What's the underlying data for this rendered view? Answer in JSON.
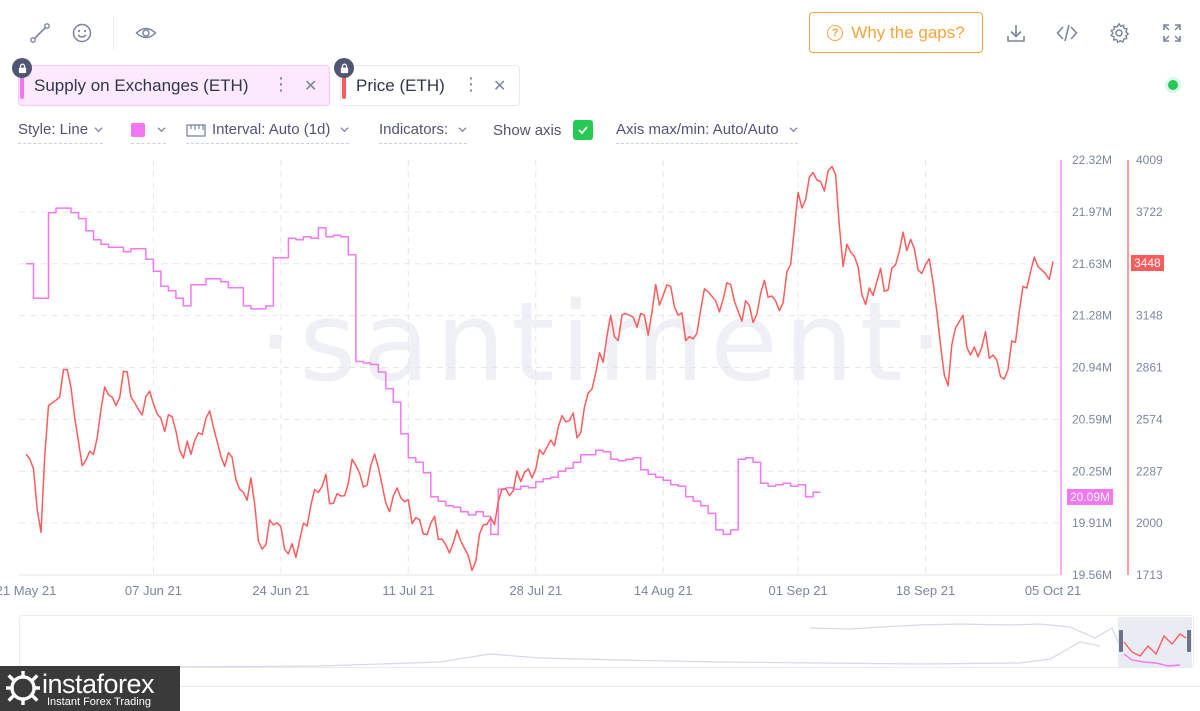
{
  "toolbar": {
    "left_icons": [
      "line-draw-icon",
      "emoji-icon",
      "eye-icon"
    ],
    "gaps_label": "Why the gaps?",
    "right_icons": [
      "download-icon",
      "embed-code-icon",
      "settings-icon",
      "fullscreen-icon"
    ]
  },
  "metrics": [
    {
      "label": "Supply on Exchanges (ETH)",
      "color": "#f477f2"
    },
    {
      "label": "Price (ETH)",
      "color": "#ff5b5b"
    }
  ],
  "settings": {
    "style": "Style: Line",
    "interval": "Interval: Auto (1d)",
    "indicators": "Indicators:",
    "show_axis": "Show axis",
    "axis_range": "Axis max/min: Auto/Auto"
  },
  "watermark": "·santiment·",
  "chart_data": {
    "type": "line",
    "x": {
      "ticks": [
        "21 May 21",
        "07 Jun 21",
        "24 Jun 21",
        "11 Jul 21",
        "28 Jul 21",
        "14 Aug 21",
        "01 Sep 21",
        "18 Sep 21",
        "05 Oct 21"
      ]
    },
    "supply_axis": {
      "ticks": [
        "22.32M",
        "21.97M",
        "21.63M",
        "21.28M",
        "20.94M",
        "20.59M",
        "20.25M",
        "19.91M",
        "19.56M"
      ],
      "range": [
        19.56,
        22.32
      ],
      "unit": "M",
      "current_label": "20.09M"
    },
    "price_axis": {
      "ticks": [
        "4009",
        "3722",
        "3448",
        "3148",
        "2861",
        "2574",
        "2287",
        "2000",
        "1713"
      ],
      "range": [
        1713,
        4009
      ],
      "current_label": "3448"
    },
    "series": [
      {
        "name": "Supply on Exchanges (ETH)",
        "color": "#f477f2",
        "axis": "supply",
        "points": [
          [
            "21 May 21",
            21.63
          ],
          [
            "22 May 21",
            21.4
          ],
          [
            "23 May 21",
            21.4
          ],
          [
            "24 May 21",
            21.97
          ],
          [
            "25 May 21",
            22.0
          ],
          [
            "26 May 21",
            22.0
          ],
          [
            "27 May 21",
            21.97
          ],
          [
            "28 May 21",
            21.93
          ],
          [
            "29 May 21",
            21.85
          ],
          [
            "30 May 21",
            21.79
          ],
          [
            "31 May 21",
            21.76
          ],
          [
            "01 Jun 21",
            21.74
          ],
          [
            "02 Jun 21",
            21.74
          ],
          [
            "03 Jun 21",
            21.71
          ],
          [
            "04 Jun 21",
            21.73
          ],
          [
            "05 Jun 21",
            21.73
          ],
          [
            "06 Jun 21",
            21.66
          ],
          [
            "07 Jun 21",
            21.58
          ],
          [
            "08 Jun 21",
            21.48
          ],
          [
            "09 Jun 21",
            21.45
          ],
          [
            "10 Jun 21",
            21.4
          ],
          [
            "11 Jun 21",
            21.35
          ],
          [
            "12 Jun 21",
            21.49
          ],
          [
            "13 Jun 21",
            21.49
          ],
          [
            "14 Jun 21",
            21.53
          ],
          [
            "15 Jun 21",
            21.53
          ],
          [
            "16 Jun 21",
            21.51
          ],
          [
            "17 Jun 21",
            21.47
          ],
          [
            "18 Jun 21",
            21.47
          ],
          [
            "19 Jun 21",
            21.35
          ],
          [
            "20 Jun 21",
            21.33
          ],
          [
            "21 Jun 21",
            21.33
          ],
          [
            "22 Jun 21",
            21.35
          ],
          [
            "23 Jun 21",
            21.67
          ],
          [
            "24 Jun 21",
            21.67
          ],
          [
            "25 Jun 21",
            21.8
          ],
          [
            "26 Jun 21",
            21.79
          ],
          [
            "27 Jun 21",
            21.81
          ],
          [
            "28 Jun 21",
            21.8
          ],
          [
            "29 Jun 21",
            21.87
          ],
          [
            "30 Jun 21",
            21.81
          ],
          [
            "01 Jul 21",
            21.82
          ],
          [
            "02 Jul 21",
            21.81
          ],
          [
            "03 Jul 21",
            21.69
          ],
          [
            "04 Jul 21",
            20.98
          ],
          [
            "05 Jul 21",
            20.97
          ],
          [
            "06 Jul 21",
            20.96
          ],
          [
            "07 Jul 21",
            20.91
          ],
          [
            "08 Jul 21",
            20.8
          ],
          [
            "09 Jul 21",
            20.71
          ],
          [
            "10 Jul 21",
            20.5
          ],
          [
            "11 Jul 21",
            20.34
          ],
          [
            "12 Jul 21",
            20.31
          ],
          [
            "13 Jul 21",
            20.24
          ],
          [
            "14 Jul 21",
            20.08
          ],
          [
            "15 Jul 21",
            20.05
          ],
          [
            "16 Jul 21",
            20.02
          ],
          [
            "17 Jul 21",
            20.01
          ],
          [
            "18 Jul 21",
            19.98
          ],
          [
            "19 Jul 21",
            19.96
          ],
          [
            "20 Jul 21",
            19.98
          ],
          [
            "21 Jul 21",
            19.95
          ],
          [
            "22 Jul 21",
            19.83
          ],
          [
            "23 Jul 21",
            20.13
          ],
          [
            "24 Jul 21",
            20.14
          ],
          [
            "25 Jul 21",
            20.13
          ],
          [
            "26 Jul 21",
            20.15
          ],
          [
            "27 Jul 21",
            20.14
          ],
          [
            "28 Jul 21",
            20.18
          ],
          [
            "29 Jul 21",
            20.2
          ],
          [
            "30 Jul 21",
            20.21
          ],
          [
            "31 Jul 21",
            20.25
          ],
          [
            "01 Aug 21",
            20.27
          ],
          [
            "02 Aug 21",
            20.31
          ],
          [
            "03 Aug 21",
            20.36
          ],
          [
            "04 Aug 21",
            20.36
          ],
          [
            "05 Aug 21",
            20.39
          ],
          [
            "06 Aug 21",
            20.38
          ],
          [
            "07 Aug 21",
            20.33
          ],
          [
            "08 Aug 21",
            20.32
          ],
          [
            "09 Aug 21",
            20.33
          ],
          [
            "10 Aug 21",
            20.34
          ],
          [
            "11 Aug 21",
            20.26
          ],
          [
            "12 Aug 21",
            20.23
          ],
          [
            "13 Aug 21",
            20.21
          ],
          [
            "14 Aug 21",
            20.19
          ],
          [
            "15 Aug 21",
            20.16
          ],
          [
            "16 Aug 21",
            20.15
          ],
          [
            "17 Aug 21",
            20.08
          ],
          [
            "18 Aug 21",
            20.05
          ],
          [
            "19 Aug 21",
            20.02
          ],
          [
            "20 Aug 21",
            19.97
          ],
          [
            "21 Aug 21",
            19.86
          ],
          [
            "22 Aug 21",
            19.83
          ],
          [
            "23 Aug 21",
            19.86
          ],
          [
            "24 Aug 21",
            20.33
          ],
          [
            "25 Aug 21",
            20.34
          ],
          [
            "26 Aug 21",
            20.31
          ],
          [
            "27 Aug 21",
            20.17
          ],
          [
            "28 Aug 21",
            20.15
          ],
          [
            "29 Aug 21",
            20.16
          ],
          [
            "30 Aug 21",
            20.17
          ],
          [
            "31 Aug 21",
            20.15
          ],
          [
            "01 Sep 21",
            20.16
          ],
          [
            "02 Sep 21",
            20.08
          ],
          [
            "03 Sep 21",
            20.11
          ],
          [
            "04 Sep 21",
            20.11
          ]
        ]
      },
      {
        "name": "Price (ETH)",
        "color": "#ff5b5b",
        "axis": "price",
        "points": [
          [
            "21 May 21",
            2380
          ],
          [
            "22 May 21",
            2300
          ],
          [
            "23 May 21",
            1950
          ],
          [
            "24 May 21",
            2650
          ],
          [
            "25 May 21",
            2680
          ],
          [
            "26 May 21",
            2850
          ],
          [
            "27 May 21",
            2750
          ],
          [
            "28 May 21",
            2450
          ],
          [
            "29 May 21",
            2350
          ],
          [
            "30 May 21",
            2380
          ],
          [
            "31 May 21",
            2630
          ],
          [
            "01 Jun 21",
            2710
          ],
          [
            "02 Jun 21",
            2650
          ],
          [
            "03 Jun 21",
            2840
          ],
          [
            "04 Jun 21",
            2700
          ],
          [
            "05 Jun 21",
            2630
          ],
          [
            "06 Jun 21",
            2700
          ],
          [
            "07 Jun 21",
            2660
          ],
          [
            "08 Jun 21",
            2580
          ],
          [
            "09 Jun 21",
            2600
          ],
          [
            "10 Jun 21",
            2510
          ],
          [
            "11 Jun 21",
            2360
          ],
          [
            "12 Jun 21",
            2380
          ],
          [
            "13 Jun 21",
            2500
          ],
          [
            "14 Jun 21",
            2580
          ],
          [
            "15 Jun 21",
            2530
          ],
          [
            "16 Jun 21",
            2370
          ],
          [
            "17 Jun 21",
            2390
          ],
          [
            "18 Jun 21",
            2240
          ],
          [
            "19 Jun 21",
            2170
          ],
          [
            "20 Jun 21",
            2250
          ],
          [
            "21 Jun 21",
            1900
          ],
          [
            "22 Jun 21",
            1880
          ],
          [
            "23 Jun 21",
            1990
          ],
          [
            "24 Jun 21",
            1980
          ],
          [
            "25 Jun 21",
            1830
          ],
          [
            "26 Jun 21",
            1810
          ],
          [
            "27 Jun 21",
            2000
          ],
          [
            "28 Jun 21",
            2100
          ],
          [
            "29 Jun 21",
            2170
          ],
          [
            "30 Jun 21",
            2270
          ],
          [
            "01 Jul 21",
            2110
          ],
          [
            "02 Jul 21",
            2150
          ],
          [
            "03 Jul 21",
            2220
          ],
          [
            "04 Jul 21",
            2320
          ],
          [
            "05 Jul 21",
            2200
          ],
          [
            "06 Jul 21",
            2320
          ],
          [
            "07 Jul 21",
            2310
          ],
          [
            "08 Jul 21",
            2110
          ],
          [
            "09 Jul 21",
            2150
          ],
          [
            "10 Jul 21",
            2140
          ],
          [
            "11 Jul 21",
            2130
          ],
          [
            "12 Jul 21",
            2030
          ],
          [
            "13 Jul 21",
            1940
          ],
          [
            "14 Jul 21",
            2000
          ],
          [
            "15 Jul 21",
            1910
          ],
          [
            "16 Jul 21",
            1880
          ],
          [
            "17 Jul 21",
            1890
          ],
          [
            "18 Jul 21",
            1900
          ],
          [
            "19 Jul 21",
            1820
          ],
          [
            "20 Jul 21",
            1790
          ],
          [
            "21 Jul 21",
            1990
          ],
          [
            "22 Jul 21",
            2030
          ],
          [
            "23 Jul 21",
            2120
          ],
          [
            "24 Jul 21",
            2190
          ],
          [
            "25 Jul 21",
            2180
          ],
          [
            "26 Jul 21",
            2230
          ],
          [
            "27 Jul 21",
            2300
          ],
          [
            "28 Jul 21",
            2300
          ],
          [
            "29 Jul 21",
            2380
          ],
          [
            "30 Jul 21",
            2460
          ],
          [
            "31 Jul 21",
            2530
          ],
          [
            "01 Aug 21",
            2560
          ],
          [
            "02 Aug 21",
            2610
          ],
          [
            "03 Aug 21",
            2500
          ],
          [
            "04 Aug 21",
            2720
          ],
          [
            "05 Aug 21",
            2830
          ],
          [
            "06 Aug 21",
            2890
          ],
          [
            "07 Aug 21",
            3150
          ],
          [
            "08 Aug 21",
            3010
          ],
          [
            "09 Aug 21",
            3160
          ],
          [
            "10 Aug 21",
            3140
          ],
          [
            "11 Aug 21",
            3160
          ],
          [
            "12 Aug 21",
            3040
          ],
          [
            "13 Aug 21",
            3320
          ],
          [
            "14 Aug 21",
            3260
          ],
          [
            "15 Aug 21",
            3310
          ],
          [
            "16 Aug 21",
            3150
          ],
          [
            "17 Aug 21",
            3010
          ],
          [
            "18 Aug 21",
            3020
          ],
          [
            "19 Aug 21",
            3180
          ],
          [
            "20 Aug 21",
            3280
          ],
          [
            "21 Aug 21",
            3230
          ],
          [
            "22 Aug 21",
            3240
          ],
          [
            "23 Aug 21",
            3320
          ],
          [
            "24 Aug 21",
            3170
          ],
          [
            "25 Aug 21",
            3230
          ],
          [
            "26 Aug 21",
            3110
          ],
          [
            "27 Aug 21",
            3270
          ],
          [
            "28 Aug 21",
            3250
          ],
          [
            "29 Aug 21",
            3230
          ],
          [
            "30 Aug 21",
            3220
          ],
          [
            "31 Aug 21",
            3430
          ],
          [
            "01 Sep 21",
            3830
          ],
          [
            "02 Sep 21",
            3790
          ],
          [
            "03 Sep 21",
            3940
          ],
          [
            "04 Sep 21",
            3890
          ],
          [
            "05 Sep 21",
            3950
          ],
          [
            "06 Sep 21",
            3930
          ],
          [
            "07 Sep 21",
            3420
          ],
          [
            "08 Sep 21",
            3500
          ],
          [
            "09 Sep 21",
            3420
          ],
          [
            "10 Sep 21",
            3210
          ],
          [
            "11 Sep 21",
            3260
          ],
          [
            "12 Sep 21",
            3410
          ],
          [
            "13 Sep 21",
            3290
          ],
          [
            "14 Sep 21",
            3430
          ],
          [
            "15 Sep 21",
            3610
          ],
          [
            "16 Sep 21",
            3570
          ],
          [
            "17 Sep 21",
            3400
          ],
          [
            "18 Sep 21",
            3430
          ],
          [
            "19 Sep 21",
            3330
          ],
          [
            "20 Sep 21",
            2980
          ],
          [
            "21 Sep 21",
            2760
          ],
          [
            "22 Sep 21",
            3080
          ],
          [
            "23 Sep 21",
            3150
          ],
          [
            "24 Sep 21",
            2930
          ],
          [
            "25 Sep 21",
            2920
          ],
          [
            "26 Sep 21",
            3060
          ],
          [
            "27 Sep 21",
            2930
          ],
          [
            "28 Sep 21",
            2810
          ],
          [
            "29 Sep 21",
            2850
          ],
          [
            "30 Sep 21",
            3000
          ],
          [
            "01 Oct 21",
            3310
          ],
          [
            "02 Oct 21",
            3390
          ],
          [
            "03 Oct 21",
            3420
          ],
          [
            "04 Oct 21",
            3380
          ],
          [
            "05 Oct 21",
            3448
          ]
        ]
      }
    ],
    "grid": true,
    "legend": "top-left"
  },
  "branding": {
    "name": "instaforex",
    "tagline": "Instant Forex Trading"
  }
}
